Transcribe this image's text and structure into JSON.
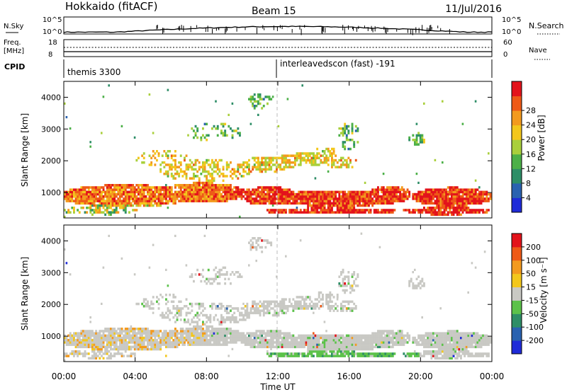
{
  "header": {
    "station": "Hokkaido (fitACF)",
    "beam": "Beam 15",
    "date": "11/Jul/2016"
  },
  "sky_panel": {
    "left_label": "N.Sky",
    "right_label": "N.Search",
    "ticks": [
      "10^5",
      "10^0"
    ]
  },
  "freq_panel": {
    "left_label_1": "Freq.",
    "left_label_2": "[MHz]",
    "right_label": "Nave",
    "left_ticks": [
      "18",
      "8"
    ],
    "right_ticks": [
      "60",
      "0"
    ]
  },
  "cpid_panel": {
    "label": "CPID",
    "mode_1": "themis 3300",
    "mode_2": "interleavedscon (fast) -191"
  },
  "chart_data": [
    {
      "type": "heatmap",
      "title": "",
      "ylabel": "Slant Range [km]",
      "xlabel": "",
      "ylim": [
        200,
        4500
      ],
      "y_ticks": [
        "1000",
        "2000",
        "3000",
        "4000"
      ],
      "colorbar_label": "Power [dB]",
      "colorbar_ticks": [
        "4",
        "8",
        "12",
        "16",
        "20",
        "24",
        "28"
      ],
      "colorbar_colors": [
        "#1f2bd8",
        "#2a62b0",
        "#2e8e67",
        "#4cb048",
        "#a9cf3c",
        "#f3c71c",
        "#f39a1e",
        "#ee5a17",
        "#e3131b"
      ]
    },
    {
      "type": "heatmap",
      "title": "",
      "ylabel": "Slant Range [km]",
      "xlabel": "Time UT",
      "ylim": [
        200,
        4500
      ],
      "y_ticks": [
        "1000",
        "2000",
        "3000",
        "4000"
      ],
      "x_ticks": [
        "00:00",
        "04:00",
        "08:00",
        "12:00",
        "16:00",
        "20:00",
        "00:00"
      ],
      "colorbar_label": "Velocity [m s⁻¹]",
      "colorbar_ticks": [
        "200",
        "100",
        "50",
        "15",
        "-15",
        "-50",
        "-100",
        "-200"
      ],
      "colorbar_colors": [
        "#1f2bd8",
        "#2a62b0",
        "#2e8e67",
        "#5cc24a",
        "#c9c9c4",
        "#f3c71c",
        "#f39a1e",
        "#ee5a17",
        "#e3131b"
      ]
    }
  ]
}
